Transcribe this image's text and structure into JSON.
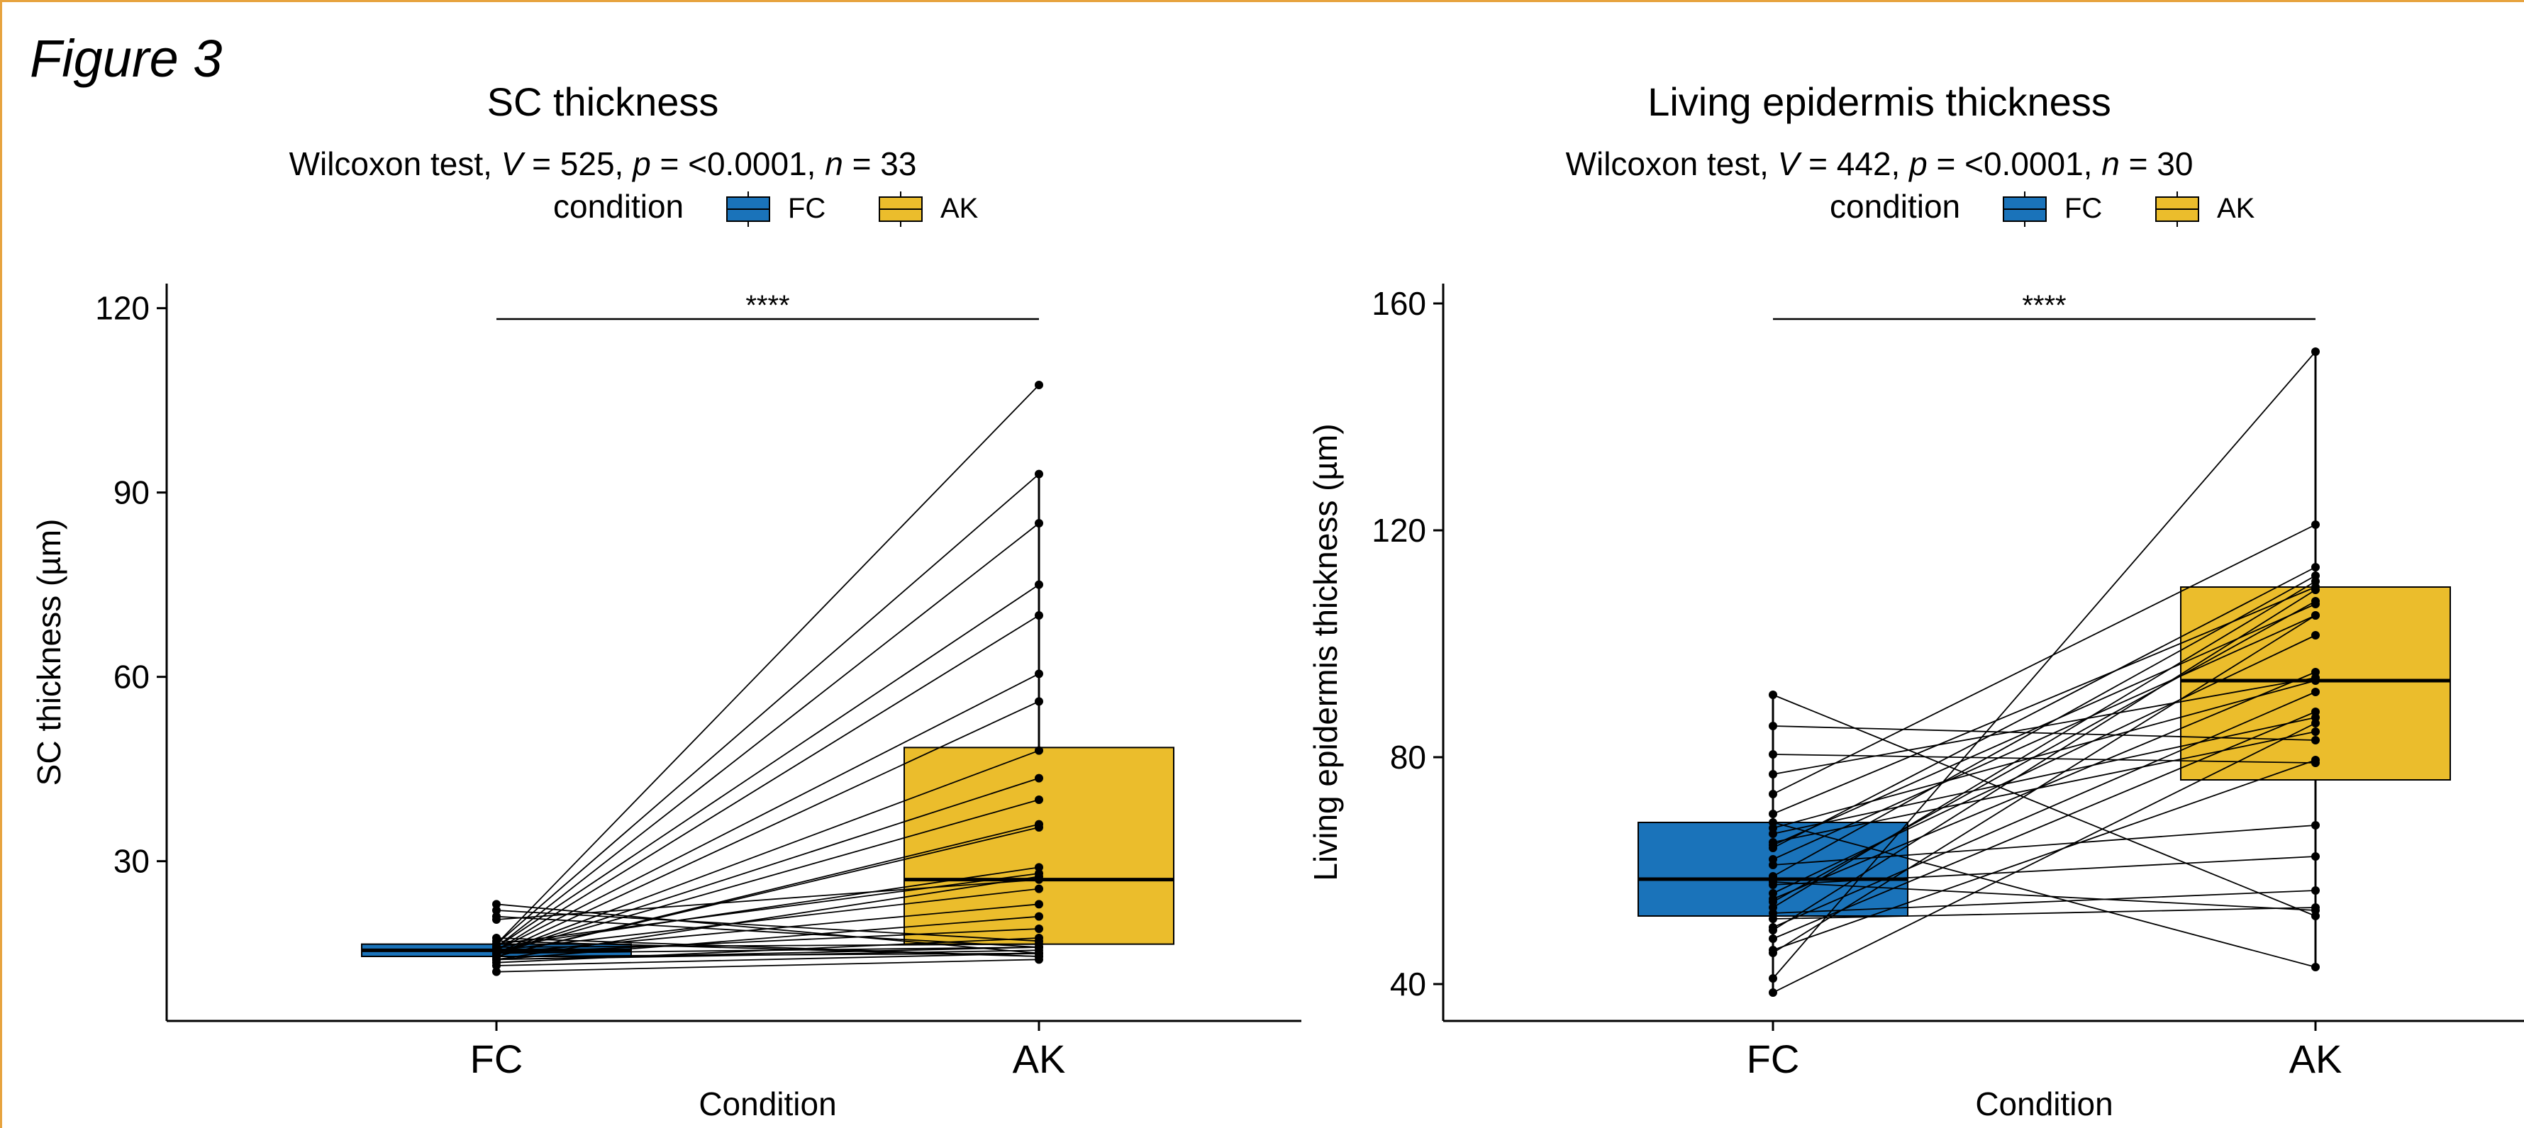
{
  "figure_label": "Figure 3",
  "colors": {
    "FC": "#1A73BA",
    "AK": "#EBBD2C",
    "frame": "#E7A33E"
  },
  "chart_data": [
    {
      "type": "box",
      "title": "SC thickness",
      "subtitle": {
        "test": "Wilcoxon test, ",
        "V_sym": "V",
        "V_val": " = 525, ",
        "p_sym": "p",
        "p_val": " = <0.0001, ",
        "n_sym": "n",
        "n_val": " = 33"
      },
      "legend": {
        "title": "condition",
        "entries": [
          "FC",
          "AK"
        ],
        "position": "top"
      },
      "xlabel": "Condition",
      "ylabel": "SC thickness (µm)",
      "categories": [
        "FC",
        "AK"
      ],
      "ylim": [
        4,
        124
      ],
      "yticks": [
        30,
        60,
        90,
        120
      ],
      "significance": "****",
      "boxes": {
        "FC": {
          "q1": 14.5,
          "median": 15.5,
          "q3": 16.5,
          "whisker_low": 12,
          "whisker_high": 18
        },
        "AK": {
          "q1": 16.5,
          "median": 27,
          "q3": 48.5,
          "whisker_low": 14,
          "whisker_high": 93
        }
      },
      "pairs": [
        [
          23.0,
          15.0
        ],
        [
          22.0,
          17.0
        ],
        [
          21.0,
          16.0
        ],
        [
          20.5,
          27.0
        ],
        [
          17.5,
          14.5
        ],
        [
          16.5,
          107.5
        ],
        [
          16.5,
          93.0
        ],
        [
          16.0,
          85.0
        ],
        [
          16.0,
          75.0
        ],
        [
          15.5,
          70.0
        ],
        [
          15.5,
          60.5
        ],
        [
          15.0,
          56.0
        ],
        [
          15.0,
          48.0
        ],
        [
          15.0,
          43.5
        ],
        [
          15.0,
          40.0
        ],
        [
          14.5,
          36.0
        ],
        [
          14.5,
          35.5
        ],
        [
          16.0,
          29.0
        ],
        [
          16.5,
          28.0
        ],
        [
          14.0,
          27.5
        ],
        [
          15.5,
          25.5
        ],
        [
          15.0,
          23.0
        ],
        [
          14.0,
          21.0
        ],
        [
          15.0,
          19.0
        ],
        [
          13.5,
          17.5
        ],
        [
          16.0,
          16.5
        ],
        [
          15.0,
          16.0
        ],
        [
          14.0,
          15.5
        ],
        [
          14.5,
          15.0
        ],
        [
          13.0,
          15.0
        ],
        [
          12.0,
          14.0
        ],
        [
          17.0,
          14.5
        ],
        [
          14.0,
          16.0
        ]
      ]
    },
    {
      "type": "box",
      "title": "Living epidermis thickness",
      "subtitle": {
        "test": "Wilcoxon test, ",
        "V_sym": "V",
        "V_val": " = 442, ",
        "p_sym": "p",
        "p_val": " = <0.0001, ",
        "n_sym": "n",
        "n_val": " = 30"
      },
      "legend": {
        "title": "condition",
        "entries": [
          "FC",
          "AK"
        ],
        "position": "top"
      },
      "xlabel": "Condition",
      "ylabel": "Living epidermis thickness (µm)",
      "categories": [
        "FC",
        "AK"
      ],
      "ylim": [
        33.5,
        163.5
      ],
      "yticks": [
        40,
        80,
        120,
        160
      ],
      "significance": "****",
      "boxes": {
        "FC": {
          "q1": 52,
          "median": 58.5,
          "q3": 68.5,
          "whisker_low": 38.5,
          "whisker_high": 91
        },
        "AK": {
          "q1": 76,
          "median": 93.5,
          "q3": 110,
          "whisker_low": 43,
          "whisker_high": 151.5
        }
      },
      "pairs": [
        [
          91.0,
          52.0
        ],
        [
          85.5,
          83.0
        ],
        [
          80.5,
          79.0
        ],
        [
          77.0,
          94.0
        ],
        [
          73.5,
          121.0
        ],
        [
          70.0,
          110.0
        ],
        [
          68.5,
          43.0
        ],
        [
          67.5,
          93.5
        ],
        [
          66.5,
          87.0
        ],
        [
          65.0,
          84.5
        ],
        [
          64.0,
          113.5
        ],
        [
          62.0,
          105.0
        ],
        [
          61.0,
          68.0
        ],
        [
          59.0,
          112.0
        ],
        [
          57.5,
          62.5
        ],
        [
          56.0,
          101.5
        ],
        [
          55.0,
          95.0
        ],
        [
          54.5,
          107.5
        ],
        [
          53.5,
          111.0
        ],
        [
          52.5,
          56.5
        ],
        [
          51.5,
          53.5
        ],
        [
          50.0,
          91.5
        ],
        [
          49.5,
          109.5
        ],
        [
          48.0,
          88.0
        ],
        [
          46.0,
          79.5
        ],
        [
          45.5,
          105.0
        ],
        [
          41.0,
          151.5
        ],
        [
          38.5,
          86.0
        ],
        [
          64.5,
          107.0
        ],
        [
          58.0,
          53.0
        ]
      ]
    }
  ]
}
